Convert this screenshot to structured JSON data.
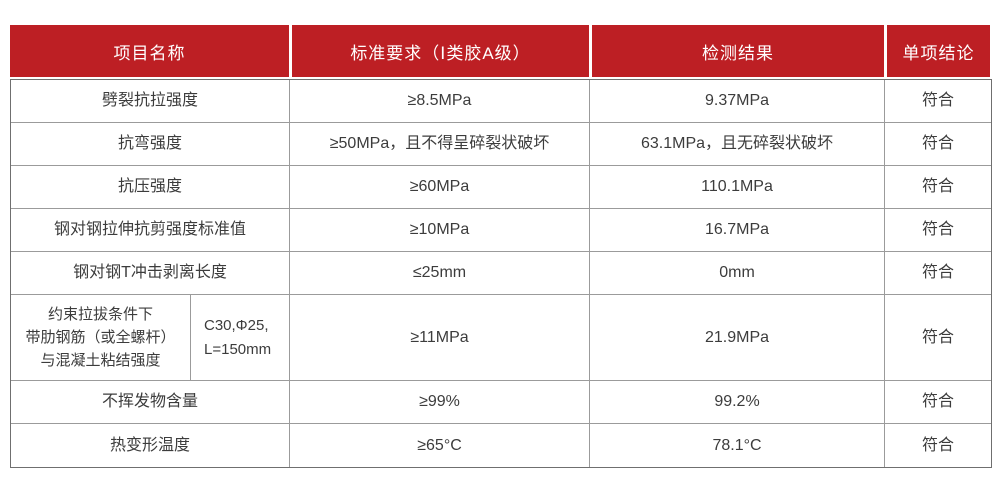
{
  "colors": {
    "header_bg": "#BD1F24",
    "header_text": "#FFFFFF",
    "body_text": "#3C3C3C",
    "inner_border": "#9B9B9B",
    "outer_border": "#6F6F6F",
    "page_bg": "#FFFFFF"
  },
  "table": {
    "headers": [
      "项目名称",
      "标准要求（Ⅰ类胶A级）",
      "检测结果",
      "单项结论"
    ],
    "rows": [
      {
        "name": "劈裂抗拉强度",
        "standard": "≥8.5MPa",
        "result": "9.37MPa",
        "conclusion": "符合"
      },
      {
        "name": "抗弯强度",
        "standard": "≥50MPa，且不得呈碎裂状破坏",
        "result": "63.1MPa，且无碎裂状破坏",
        "conclusion": "符合"
      },
      {
        "name": "抗压强度",
        "standard": "≥60MPa",
        "result": "110.1MPa",
        "conclusion": "符合"
      },
      {
        "name": "钢对钢拉伸抗剪强度标准值",
        "standard": "≥10MPa",
        "result": "16.7MPa",
        "conclusion": "符合"
      },
      {
        "name": "钢对钢T冲击剥离长度",
        "standard": "≤25mm",
        "result": "0mm",
        "conclusion": "符合"
      },
      {
        "name": "约束拉拔条件下\n带肋钢筋（或全螺杆）\n与混凝土粘结强度",
        "condition": "C30,Φ25,\nL=150mm",
        "standard": "≥11MPa",
        "result": "21.9MPa",
        "conclusion": "符合"
      },
      {
        "name": "不挥发物含量",
        "standard": "≥99%",
        "result": "99.2%",
        "conclusion": "符合"
      },
      {
        "name": "热变形温度",
        "standard": "≥65°C",
        "result": "78.1°C",
        "conclusion": "符合"
      }
    ]
  }
}
